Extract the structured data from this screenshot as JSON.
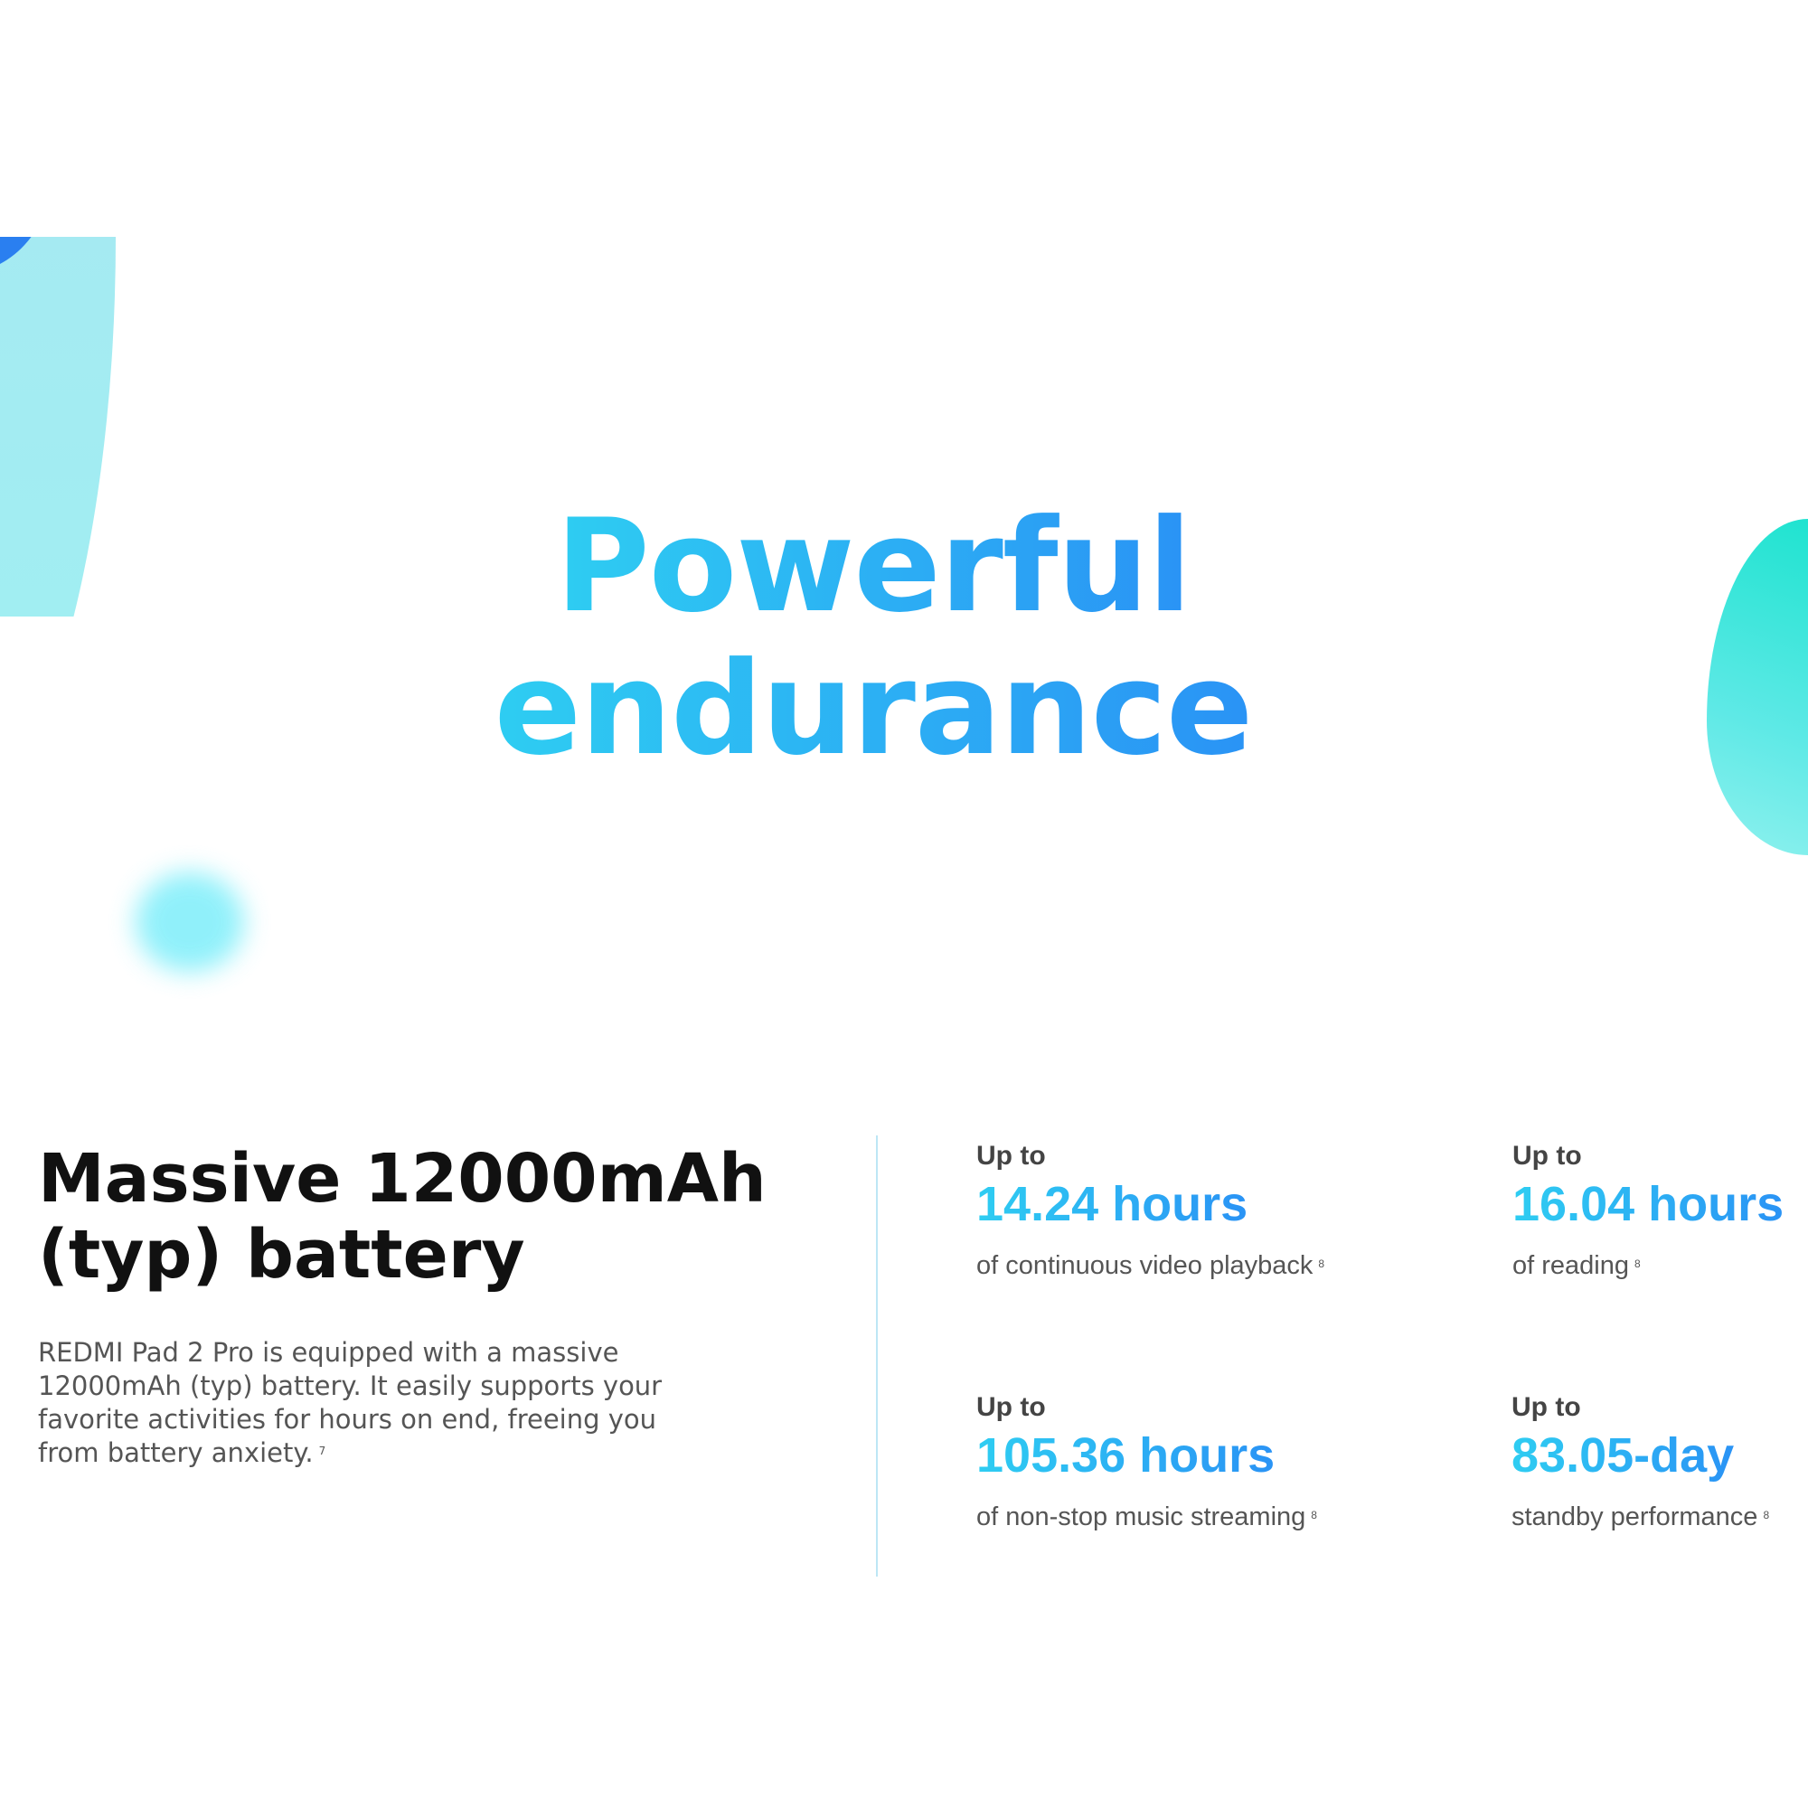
{
  "hero": {
    "title_line1": "Powerful",
    "title_line2": "endurance"
  },
  "colors": {
    "gradient_start": "#2ecdf2",
    "gradient_end": "#2a93f5",
    "divider": "#bde6f5"
  },
  "battery": {
    "heading": "Massive 12000mAh (typ) battery",
    "description": "REDMI Pad 2 Pro is equipped with a massive 12000mAh (typ) battery. It easily supports your favorite activities for hours on end, freeing you from battery anxiety.",
    "description_footnote": "7"
  },
  "stats": [
    {
      "prefix": "Up to",
      "value": "14.24 hours",
      "desc": "of continuous video playback",
      "footnote": "8"
    },
    {
      "prefix": "Up to",
      "value": "16.04 hours",
      "desc": "of reading",
      "footnote": "8"
    },
    {
      "prefix": "Up to",
      "value": "105.36 hours",
      "desc": "of non-stop music streaming",
      "footnote": "8"
    },
    {
      "prefix": "Up to",
      "value": "83.05-day",
      "desc": "standby performance",
      "footnote": "8"
    }
  ]
}
